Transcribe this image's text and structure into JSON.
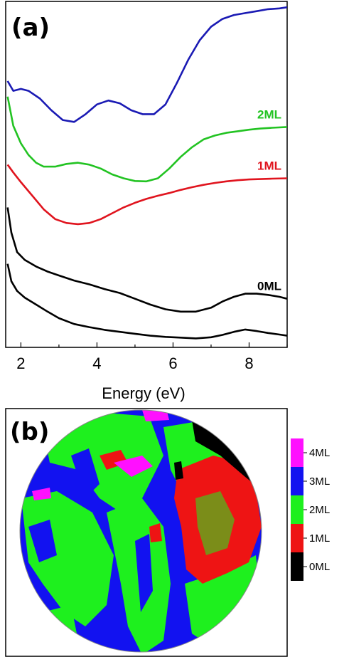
{
  "chart_data": [
    {
      "type": "line",
      "panel_label": "(a)",
      "xlabel": "Energy (eV)",
      "xlim": [
        1.6,
        9.0
      ],
      "xticks": [
        "2",
        "4",
        "6",
        "8"
      ],
      "ylabel": "",
      "yaxis_ticks": false,
      "series": [
        {
          "name": "3ML",
          "color": "#1a1ab4",
          "x": [
            1.65,
            1.8,
            2.0,
            2.2,
            2.5,
            2.8,
            3.1,
            3.4,
            3.7,
            4.0,
            4.3,
            4.6,
            4.9,
            5.2,
            5.5,
            5.8,
            6.1,
            6.4,
            6.7,
            7.0,
            7.3,
            7.6,
            7.9,
            8.2,
            8.5,
            8.8,
            9.0
          ],
          "y": [
            9.55,
            9.3,
            9.35,
            9.3,
            9.1,
            8.8,
            8.55,
            8.5,
            8.7,
            8.95,
            9.05,
            8.98,
            8.8,
            8.7,
            8.7,
            8.95,
            9.5,
            10.1,
            10.6,
            10.95,
            11.15,
            11.25,
            11.3,
            11.35,
            11.4,
            11.42,
            11.45
          ]
        },
        {
          "name": "2ML",
          "color": "#22c322",
          "x": [
            1.65,
            1.8,
            2.0,
            2.2,
            2.4,
            2.6,
            2.9,
            3.2,
            3.5,
            3.8,
            4.1,
            4.4,
            4.7,
            5.0,
            5.3,
            5.6,
            5.9,
            6.2,
            6.5,
            6.8,
            7.1,
            7.4,
            7.7,
            8.0,
            8.3,
            8.6,
            9.0
          ],
          "y": [
            9.15,
            8.4,
            7.95,
            7.65,
            7.45,
            7.35,
            7.35,
            7.42,
            7.45,
            7.4,
            7.3,
            7.15,
            7.05,
            6.98,
            6.97,
            7.05,
            7.3,
            7.6,
            7.85,
            8.05,
            8.15,
            8.22,
            8.26,
            8.3,
            8.33,
            8.35,
            8.37
          ]
        },
        {
          "name": "1ML",
          "color": "#e0141e",
          "x": [
            1.65,
            1.8,
            2.0,
            2.3,
            2.6,
            2.9,
            3.2,
            3.5,
            3.8,
            4.1,
            4.4,
            4.7,
            5.0,
            5.3,
            5.6,
            5.9,
            6.2,
            6.5,
            6.8,
            7.1,
            7.4,
            7.7,
            8.0,
            8.3,
            8.6,
            9.0
          ],
          "y": [
            7.4,
            7.2,
            6.95,
            6.6,
            6.25,
            6.0,
            5.9,
            5.87,
            5.9,
            6.0,
            6.15,
            6.3,
            6.42,
            6.52,
            6.6,
            6.67,
            6.75,
            6.82,
            6.88,
            6.93,
            6.97,
            7.0,
            7.02,
            7.03,
            7.04,
            7.05
          ]
        },
        {
          "name": "0ML",
          "color": "#000000",
          "x": [
            1.65,
            1.75,
            1.9,
            2.1,
            2.4,
            2.7,
            3.0,
            3.4,
            3.8,
            4.2,
            4.6,
            5.0,
            5.4,
            5.8,
            6.2,
            6.6,
            7.0,
            7.3,
            7.6,
            7.9,
            8.2,
            8.5,
            8.8,
            9.0
          ],
          "y": [
            6.3,
            5.65,
            5.15,
            4.95,
            4.78,
            4.65,
            4.55,
            4.42,
            4.32,
            4.2,
            4.1,
            3.95,
            3.8,
            3.68,
            3.62,
            3.62,
            3.72,
            3.88,
            4.0,
            4.08,
            4.08,
            4.05,
            4.0,
            3.95
          ]
        },
        {
          "name": "",
          "color": "#000000",
          "x": [
            1.65,
            1.75,
            1.9,
            2.1,
            2.4,
            2.7,
            3.0,
            3.4,
            3.8,
            4.2,
            4.6,
            5.0,
            5.4,
            5.8,
            6.2,
            6.6,
            7.0,
            7.3,
            7.6,
            7.9,
            8.2,
            8.5,
            8.8,
            9.0
          ],
          "y": [
            4.85,
            4.4,
            4.15,
            3.98,
            3.8,
            3.62,
            3.45,
            3.3,
            3.22,
            3.15,
            3.1,
            3.05,
            3.0,
            2.97,
            2.95,
            2.93,
            2.96,
            3.02,
            3.1,
            3.16,
            3.12,
            3.07,
            3.03,
            3.0
          ]
        }
      ],
      "ylim": [
        2.7,
        11.6
      ]
    },
    {
      "type": "heatmap",
      "panel_label": "(b)",
      "colorbar": [
        {
          "label": "4ML",
          "color": "#ff10ff"
        },
        {
          "label": "3ML",
          "color": "#1212f0"
        },
        {
          "label": "2ML",
          "color": "#1ef01e"
        },
        {
          "label": "1ML",
          "color": "#ee1414"
        },
        {
          "label": "0ML",
          "color": "#000000"
        }
      ]
    }
  ]
}
